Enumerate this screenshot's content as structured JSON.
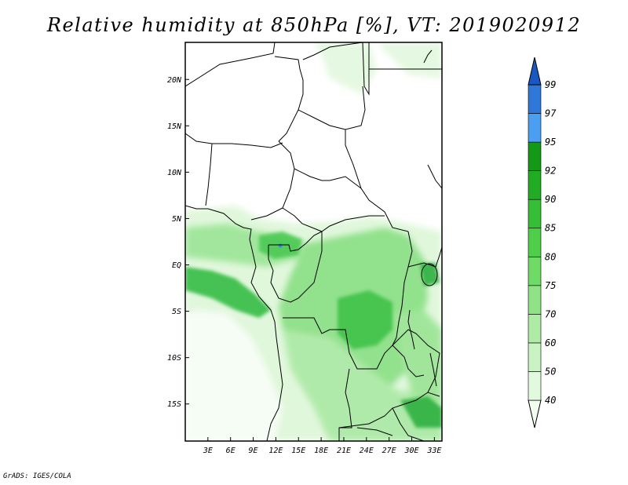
{
  "title": "Relative humidity at 850hPa [%], VT: 2019020912",
  "credit": "GrADS: IGES/COLA",
  "map": {
    "lat_ticks": [
      "20N",
      "15N",
      "10N",
      "5N",
      "EQ",
      "5S",
      "10S",
      "15S"
    ],
    "lon_ticks": [
      "3E",
      "6E",
      "9E",
      "12E",
      "15E",
      "18E",
      "21E",
      "24E",
      "27E",
      "30E",
      "33E"
    ],
    "lat_range": [
      -19,
      24
    ],
    "lon_range": [
      0,
      34
    ],
    "field_colors": {
      "land_dry": "#ffffff",
      "green_light": "#d9f6d6",
      "green_mid": "#8fe08a",
      "green_dark": "#2fb84a",
      "blue": "#3a86e0"
    }
  },
  "colorbar": {
    "levels": [
      "40",
      "50",
      "60",
      "70",
      "75",
      "80",
      "85",
      "90",
      "92",
      "95",
      "97",
      "99"
    ],
    "colors": [
      "#f2fdf0",
      "#e1f9dd",
      "#c9f3c3",
      "#aeeca6",
      "#8fe386",
      "#6fda66",
      "#4fce4a",
      "#36bf36",
      "#21ac24",
      "#139916",
      "#4c9ff0",
      "#2f77d8",
      "#1a57c0"
    ]
  }
}
